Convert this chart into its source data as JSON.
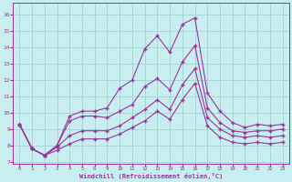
{
  "background_color": "#c8eef0",
  "grid_color": "#99cccc",
  "line_color": "#993399",
  "xlabel": "Windchill (Refroidissement éolien,°C)",
  "x_positions": [
    0,
    1,
    2,
    3,
    4,
    5,
    6,
    7,
    8,
    9,
    10,
    11,
    12,
    13,
    14,
    15,
    16,
    17,
    18,
    19,
    20,
    21
  ],
  "x_labels": [
    "0",
    "1",
    "2",
    "3",
    "4",
    "5",
    "6",
    "9",
    "10",
    "11",
    "12",
    "13",
    "14",
    "15",
    "16",
    "17",
    "18",
    "19",
    "20",
    "21",
    "22",
    "23"
  ],
  "temp": [
    9.3,
    7.8,
    7.4,
    8.0,
    9.8,
    10.1,
    10.1,
    10.3,
    11.5,
    12.0,
    13.9,
    14.7,
    13.7,
    15.4,
    15.8,
    11.2,
    10.1,
    9.4,
    9.1,
    9.3,
    9.2,
    9.3
  ],
  "windchill1": [
    9.3,
    7.8,
    7.4,
    8.0,
    9.5,
    9.8,
    9.8,
    9.7,
    10.1,
    10.5,
    11.6,
    12.1,
    11.4,
    13.1,
    14.1,
    10.3,
    9.4,
    8.9,
    8.8,
    8.9,
    8.9,
    9.0
  ],
  "windchill2": [
    9.3,
    7.8,
    7.4,
    7.9,
    8.6,
    8.9,
    8.9,
    8.9,
    9.2,
    9.7,
    10.2,
    10.8,
    10.2,
    11.7,
    12.7,
    9.7,
    9.0,
    8.6,
    8.5,
    8.6,
    8.5,
    8.6
  ],
  "windchill3": [
    9.3,
    7.8,
    7.4,
    7.7,
    8.1,
    8.4,
    8.4,
    8.4,
    8.7,
    9.1,
    9.5,
    10.1,
    9.6,
    10.8,
    11.8,
    9.2,
    8.5,
    8.2,
    8.1,
    8.2,
    8.1,
    8.2
  ],
  "ylim": [
    6.9,
    16.7
  ],
  "yticks": [
    7,
    8,
    9,
    10,
    11,
    12,
    13,
    14,
    15,
    16
  ]
}
